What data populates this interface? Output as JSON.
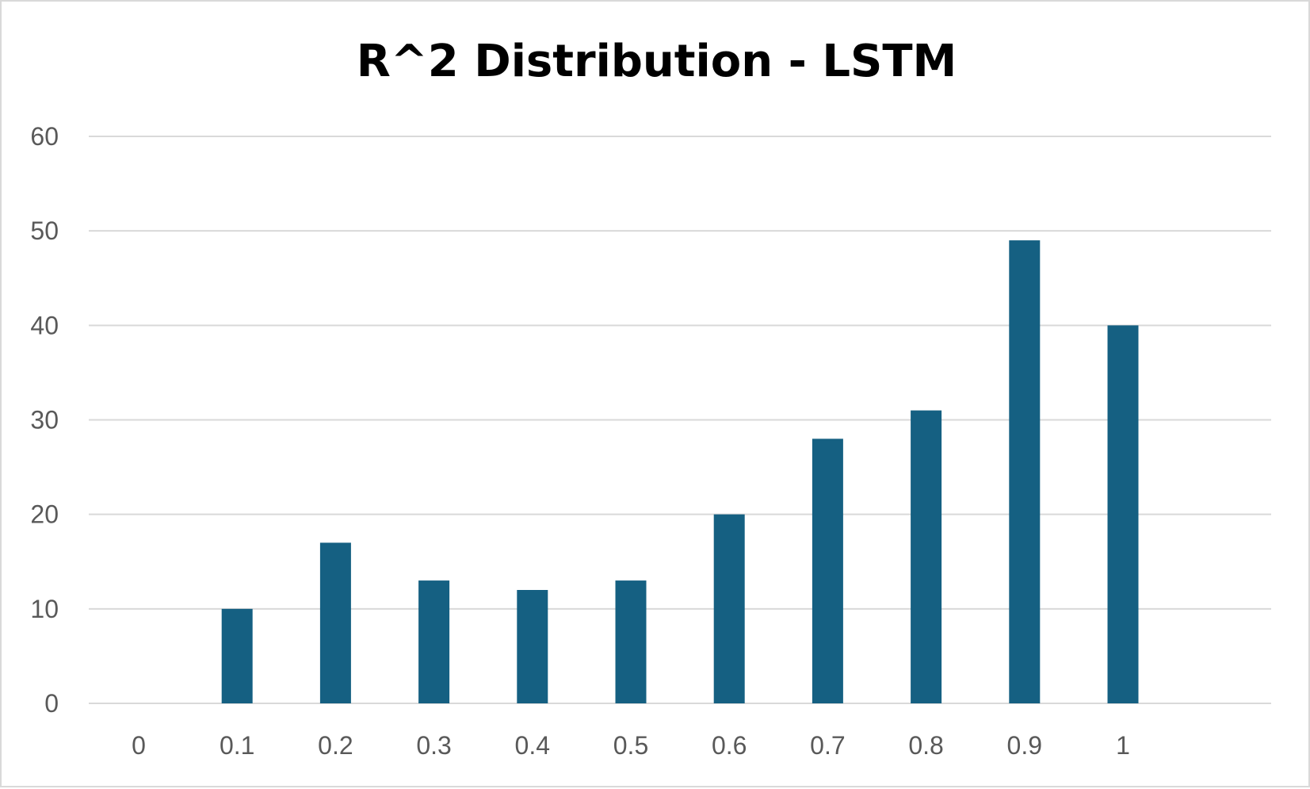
{
  "chart_data": {
    "type": "bar",
    "title": "R^2 Distribution - LSTM",
    "xlabel": "",
    "ylabel": "",
    "categories": [
      "0",
      "0.1",
      "0.2",
      "0.3",
      "0.4",
      "0.5",
      "0.6",
      "0.7",
      "0.8",
      "0.9",
      "1"
    ],
    "values": [
      0,
      10,
      17,
      13,
      12,
      13,
      20,
      28,
      31,
      49,
      40
    ],
    "ylim": [
      0,
      60
    ],
    "yticks": [
      "0",
      "10",
      "20",
      "30",
      "40",
      "50",
      "60"
    ],
    "grid": true,
    "legend": "none",
    "bar_color": "#156082"
  }
}
